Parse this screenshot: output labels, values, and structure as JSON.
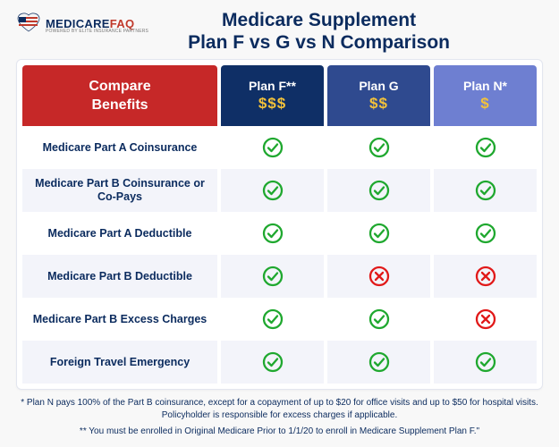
{
  "logo": {
    "brand_left": "MEDICARE",
    "brand_right": "FAQ",
    "tagline": "POWERED BY ELITE INSURANCE PARTNERS"
  },
  "title_line1": "Medicare Supplement",
  "title_line2": "Plan F vs G vs N Comparison",
  "columns": {
    "benefits_hdr_l1": "Compare",
    "benefits_hdr_l2": "Benefits",
    "plans": [
      {
        "label": "Plan F**",
        "price": "$$$",
        "bg": "#0f2f66",
        "price_color": "#f3c23a"
      },
      {
        "label": "Plan G",
        "price": "$$",
        "bg": "#2f4a8f",
        "price_color": "#f3c23a"
      },
      {
        "label": "Plan N*",
        "price": "$",
        "bg": "#6e7fd1",
        "price_color": "#f3c23a"
      }
    ]
  },
  "benefits": [
    {
      "label": "Medicare Part A Coinsurance",
      "cells": [
        "check",
        "check",
        "check"
      ]
    },
    {
      "label": "Medicare Part B Coinsurance or Co-Pays",
      "cells": [
        "check",
        "check",
        "check"
      ]
    },
    {
      "label": "Medicare Part A Deductible",
      "cells": [
        "check",
        "check",
        "check"
      ]
    },
    {
      "label": "Medicare Part B Deductible",
      "cells": [
        "check",
        "cross",
        "cross"
      ]
    },
    {
      "label": "Medicare Part B Excess Charges",
      "cells": [
        "check",
        "check",
        "cross"
      ]
    },
    {
      "label": "Foreign Travel Emergency",
      "cells": [
        "check",
        "check",
        "check"
      ]
    }
  ],
  "icons": {
    "check_color": "#1fa82f",
    "cross_color": "#e11919"
  },
  "footnotes": [
    "* Plan N pays 100% of the Part B coinsurance, except for a copayment of up to $20 for office visits and up to $50 for hospital visits. Policyholder is responsible for excess charges if applicable.",
    "** You must be enrolled in Original Medicare Prior to 1/1/20 to enroll in Medicare Supplement Plan F.\""
  ],
  "colors": {
    "stripe_red": "#c0392b",
    "stripe_blue": "#0b2b5e"
  }
}
